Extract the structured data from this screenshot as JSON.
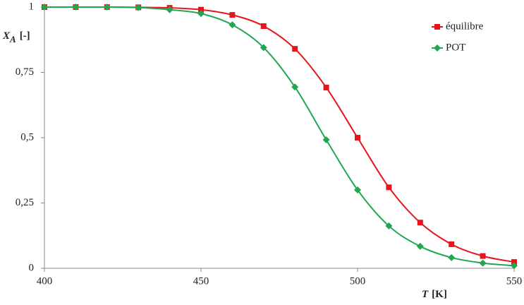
{
  "chart_data": {
    "type": "line",
    "x_label": {
      "symbol": "T",
      "unit": "[K]"
    },
    "y_label": {
      "symbol": "X",
      "subscript": "A",
      "unit": "[-]"
    },
    "x": [
      400,
      410,
      420,
      430,
      440,
      450,
      460,
      470,
      480,
      490,
      500,
      510,
      520,
      530,
      540,
      550
    ],
    "series": [
      {
        "name": "équilibre",
        "color": "#e8141b",
        "marker": "square",
        "values": [
          1,
          1,
          1,
          0.999,
          0.997,
          0.99,
          0.97,
          0.927,
          0.84,
          0.692,
          0.5,
          0.31,
          0.175,
          0.092,
          0.047,
          0.024
        ]
      },
      {
        "name": "POT",
        "color": "#1fa84f",
        "marker": "diamond",
        "values": [
          1,
          1,
          1,
          0.998,
          0.99,
          0.975,
          0.932,
          0.845,
          0.694,
          0.492,
          0.3,
          0.162,
          0.084,
          0.041,
          0.02,
          0.01
        ]
      }
    ],
    "xlim": [
      400,
      550
    ],
    "xticks": [
      400,
      450,
      500,
      550
    ],
    "ylim": [
      0,
      1
    ],
    "yticks": [
      0,
      {
        "value": 0.25,
        "label": "0,25"
      },
      {
        "value": 0.5,
        "label": "0,5"
      },
      {
        "value": 0.75,
        "label": "0,75"
      },
      1
    ],
    "grid": false,
    "legend": "upper right"
  }
}
